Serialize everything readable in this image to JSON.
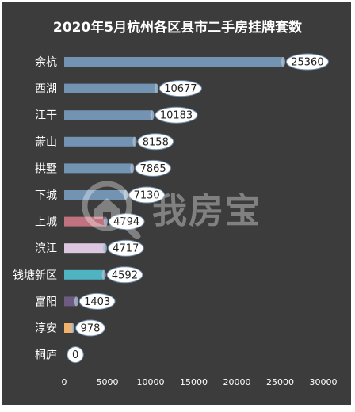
{
  "chart_data": {
    "type": "bar",
    "orientation": "horizontal",
    "title": "2020年5月杭州各区县市二手房挂牌套数",
    "categories": [
      "余杭",
      "西湖",
      "江干",
      "萧山",
      "拱墅",
      "下城",
      "上城",
      "滨江",
      "钱塘新区",
      "富阳",
      "淳安",
      "桐庐"
    ],
    "values": [
      25360,
      10677,
      10183,
      8158,
      7865,
      7130,
      4794,
      4717,
      4592,
      1403,
      978,
      0
    ],
    "bar_colors": [
      "#7393b3",
      "#7393b3",
      "#7393b3",
      "#7393b3",
      "#7393b3",
      "#7393b3",
      "#c0727e",
      "#dcc6e0",
      "#4fb3c2",
      "#6e5b82",
      "#f2b26b",
      "#7393b3"
    ],
    "xlim": [
      0,
      30000
    ],
    "xticks": [
      0,
      5000,
      10000,
      15000,
      20000,
      25000,
      30000
    ],
    "data_labels": true,
    "grid": false,
    "legend": "none"
  },
  "watermark": {
    "text": "我房宝",
    "icon": "house-magnifier-icon"
  },
  "colors": {
    "background": "#3c3c3c",
    "text": "#ffffff",
    "label_bubble": "#ffffff",
    "label_text": "#222222"
  }
}
